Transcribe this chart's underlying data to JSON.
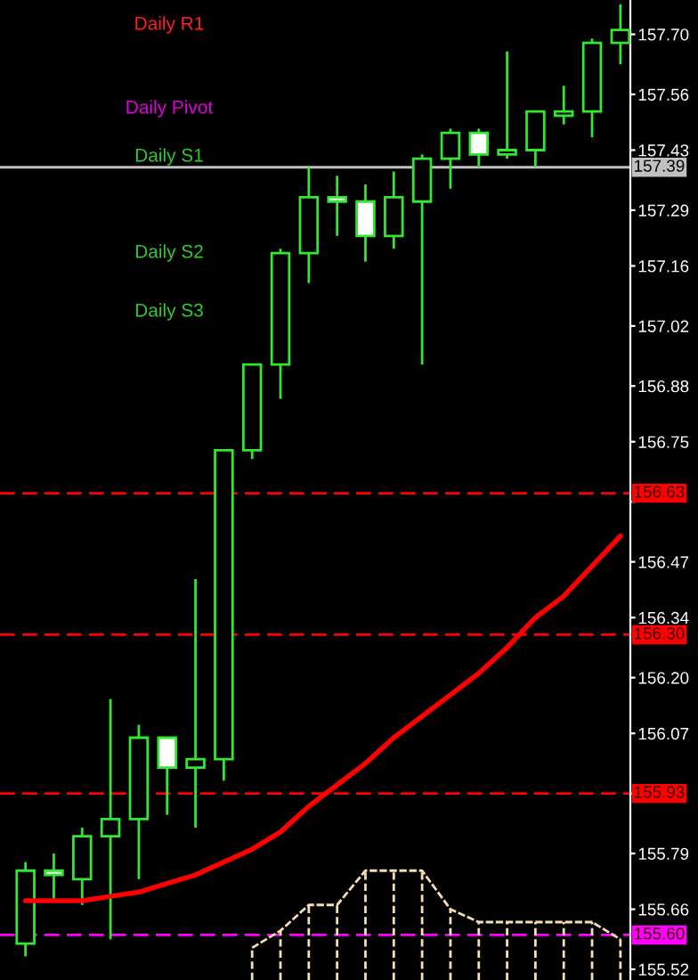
{
  "chart_data": {
    "type": "candlestick",
    "categories": [
      null,
      null,
      null,
      null,
      null,
      null,
      null,
      null,
      null,
      null,
      null,
      null,
      null,
      null,
      null,
      null,
      null,
      null,
      null,
      null,
      null,
      null
    ],
    "ohlc": [
      [
        155.58,
        155.77,
        155.55,
        155.75
      ],
      [
        155.75,
        155.79,
        155.68,
        155.74
      ],
      [
        155.73,
        155.85,
        155.67,
        155.83
      ],
      [
        155.83,
        156.15,
        155.59,
        155.87
      ],
      [
        155.87,
        156.09,
        155.73,
        156.06
      ],
      [
        156.06,
        156.06,
        155.88,
        155.99
      ],
      [
        155.99,
        156.43,
        155.85,
        156.01
      ],
      [
        156.01,
        156.73,
        155.96,
        156.73
      ],
      [
        156.73,
        156.93,
        156.71,
        156.93
      ],
      [
        156.93,
        157.2,
        156.85,
        157.19
      ],
      [
        157.19,
        157.39,
        157.12,
        157.32
      ],
      [
        157.32,
        157.37,
        157.23,
        157.31
      ],
      [
        157.31,
        157.35,
        157.17,
        157.23
      ],
      [
        157.23,
        157.38,
        157.2,
        157.32
      ],
      [
        157.31,
        157.42,
        156.93,
        157.41
      ],
      [
        157.41,
        157.48,
        157.34,
        157.47
      ],
      [
        157.47,
        157.48,
        157.39,
        157.42
      ],
      [
        157.42,
        157.66,
        157.41,
        157.43
      ],
      [
        157.43,
        157.52,
        157.39,
        157.52
      ],
      [
        157.51,
        157.58,
        157.49,
        157.52
      ],
      [
        157.52,
        157.69,
        157.46,
        157.68
      ],
      [
        157.68,
        157.77,
        157.63,
        157.71
      ]
    ],
    "series": [
      {
        "type": "line",
        "color": "#ff0000",
        "values": [
          155.68,
          155.68,
          155.68,
          155.69,
          155.7,
          155.72,
          155.74,
          155.77,
          155.8,
          155.84,
          155.9,
          155.95,
          156.0,
          156.06,
          156.11,
          156.16,
          156.21,
          156.27,
          156.34,
          156.39,
          156.46,
          156.53
        ]
      },
      {
        "type": "line",
        "color": "#f5deb3",
        "line_style": "dashed",
        "values": [
          null,
          null,
          null,
          null,
          null,
          null,
          null,
          null,
          155.57,
          155.61,
          155.67,
          155.67,
          155.75,
          155.75,
          155.75,
          155.66,
          155.63,
          155.63,
          155.63,
          155.63,
          155.63,
          155.59
        ]
      }
    ],
    "ylim": [
      155.495,
      157.78
    ],
    "yticks": [
      155.52,
      155.66,
      155.79,
      {
        "value": 155.93,
        "label": null
      },
      156.07,
      {
        "value": 156.2,
        "label": "156.20"
      },
      156.34,
      156.47,
      {
        "value": 156.61,
        "label": null
      },
      156.75,
      156.88,
      157.02,
      157.16,
      157.29,
      157.43,
      157.56,
      {
        "value": 157.7,
        "label": "157.70"
      }
    ],
    "ref_lines": [
      {
        "axis": "y",
        "value": 157.39,
        "label": "157.39",
        "color": "#c0c0c0",
        "line_style": "solid"
      },
      {
        "axis": "y",
        "value": 156.63,
        "label": "156.63",
        "color": "#ff0000",
        "line_style": "dashed"
      },
      {
        "axis": "y",
        "value": 156.3,
        "label": "156.30",
        "color": "#ff0000",
        "line_style": "dashed"
      },
      {
        "axis": "y",
        "value": 155.93,
        "label": "155.93",
        "color": "#ff0000",
        "line_style": "dashed"
      },
      {
        "axis": "y",
        "value": 155.6,
        "label": "155.60",
        "color": "#ff00ff",
        "line_style": "dashed"
      }
    ],
    "annotations": [
      "Daily R1",
      "Daily Pivot",
      "Daily S1",
      "Daily S2",
      "Daily S3"
    ],
    "grid": false,
    "legend": false,
    "tick_labels": "y"
  }
}
